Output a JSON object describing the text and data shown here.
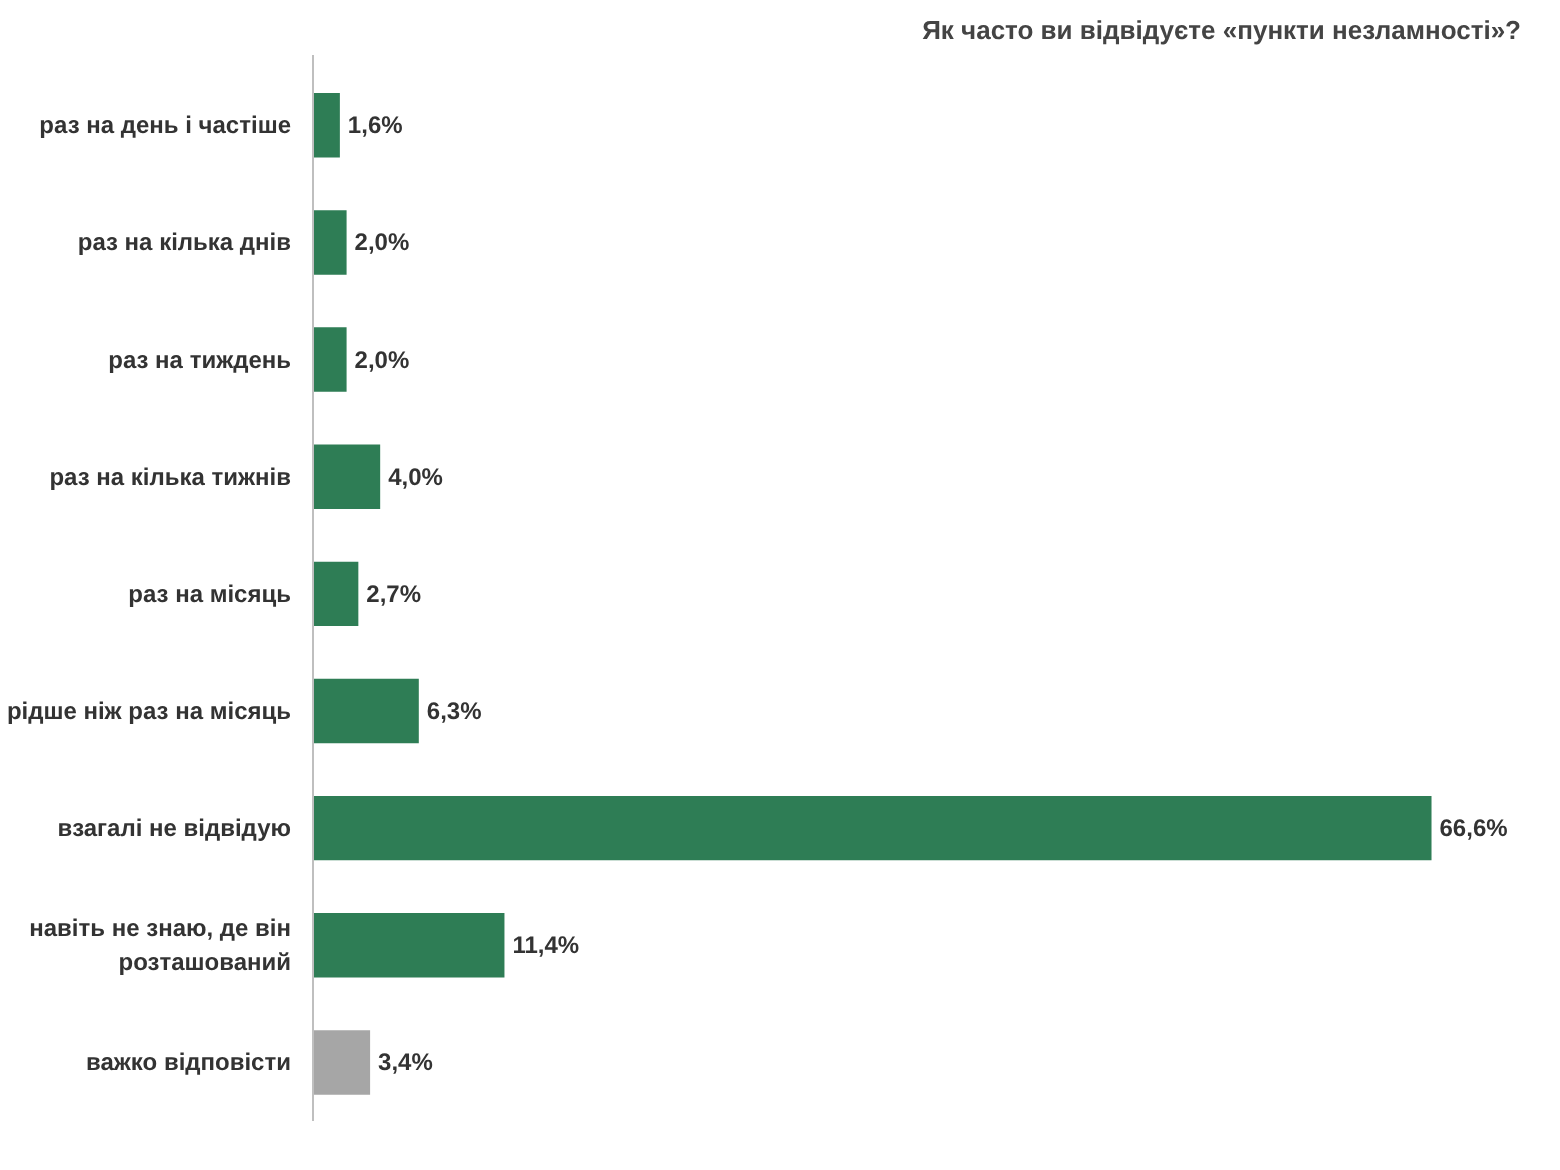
{
  "chart_data": {
    "type": "bar",
    "orientation": "horizontal",
    "title": "Як часто ви відвідуєте «пункти незламності»?",
    "categories": [
      "раз на день і частіше",
      "раз на кілька днів",
      "раз на тиждень",
      "раз на кілька тижнів",
      "раз на місяць",
      "рідше ніж раз на місяць",
      "взагалі не відвідую",
      "навіть не знаю, де він розташований",
      "важко відповісти"
    ],
    "values": [
      1.6,
      2.0,
      2.0,
      4.0,
      2.7,
      6.3,
      66.6,
      11.4,
      3.4
    ],
    "value_labels": [
      "1,6%",
      "2,0%",
      "2,0%",
      "4,0%",
      "2,7%",
      "6,3%",
      "66,6%",
      "11,4%",
      "3,4%"
    ],
    "colors": [
      "#2e7d55",
      "#2e7d55",
      "#2e7d55",
      "#2e7d55",
      "#2e7d55",
      "#2e7d55",
      "#2e7d55",
      "#2e7d55",
      "#a6a6a6"
    ],
    "grid": false
  }
}
